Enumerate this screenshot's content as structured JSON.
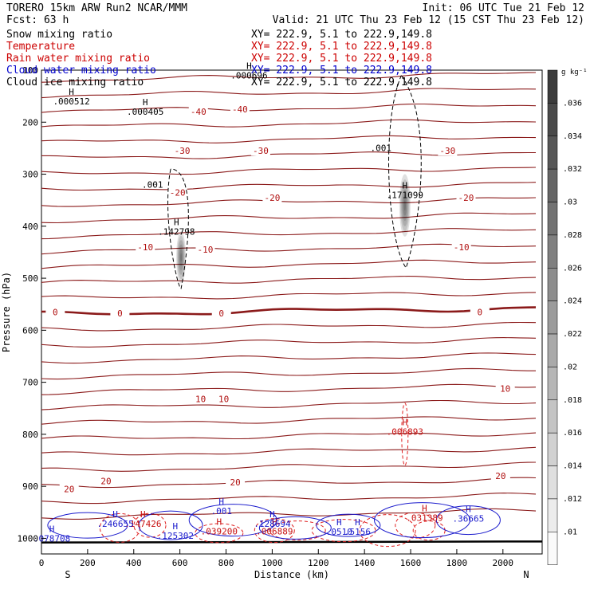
{
  "header": {
    "model": "TORERO  15km ARW    Run2     NCAR/MMM",
    "init": "Init: 06 UTC Tue 21 Feb 12",
    "fcst": "Fcst:   63 h",
    "valid": "Valid: 21 UTC Thu 23 Feb 12 (15 CST Thu 23 Feb 12)"
  },
  "legend": [
    {
      "label": "Snow mixing ratio",
      "xy": "XY= 222.9,   5.1 to 222.9,149.8",
      "color": "#000000"
    },
    {
      "label": "Temperature",
      "xy": "XY= 222.9,   5.1 to 222.9,149.8",
      "color": "#cc0000"
    },
    {
      "label": "Rain water mixing ratio",
      "xy": "XY= 222.9,   5.1 to 222.9,149.8",
      "color": "#cc0000"
    },
    {
      "label": "Cloud water mixing ratio",
      "xy": "XY= 222.9,   5.1 to 222.9,149.8",
      "color": "#0000cc"
    },
    {
      "label": "Cloud ice mixing ratio",
      "xy": "XY= 222.9,   5.1 to 222.9,149.8",
      "color": "#000000"
    }
  ],
  "colors": {
    "temperature": "#8b1a1a",
    "freezing": "#8b1a1a",
    "rain": "#e02020",
    "cloud_water": "#1a1acc",
    "snow": "#000000",
    "ground": "#000000"
  },
  "chart_data": {
    "type": "cross-section",
    "xlabel": "Distance (km)",
    "ylabel": "Pressure (hPa)",
    "xlim": [
      0,
      2170
    ],
    "ylim": [
      1030,
      100
    ],
    "x_ticks": [
      "0",
      "200",
      "400",
      "600",
      "800",
      "1000",
      "1200",
      "1400",
      "1600",
      "1800",
      "2000"
    ],
    "x_tick_values": [
      0,
      200,
      400,
      600,
      800,
      1000,
      1200,
      1400,
      1600,
      1800,
      2000
    ],
    "y_ticks": [
      "100",
      "200",
      "300",
      "400",
      "500",
      "600",
      "700",
      "800",
      "900",
      "1000"
    ],
    "y_tick_values": [
      100,
      200,
      300,
      400,
      500,
      600,
      700,
      800,
      900,
      1000
    ],
    "endpoints": {
      "left": "S",
      "right": "N"
    },
    "colorbar": {
      "unit": "g kg⁻¹",
      "ticks": [
        ".036",
        ".034",
        ".032",
        ".03",
        ".028",
        ".026",
        ".024",
        ".022",
        ".02",
        ".018",
        ".016",
        ".014",
        ".012",
        ".01"
      ]
    },
    "temperature_contours": [
      {
        "label": "-40",
        "positions": [
          [
            680,
            180
          ],
          [
            860,
            175
          ]
        ]
      },
      {
        "label": "-30",
        "positions": [
          [
            610,
            255
          ],
          [
            950,
            255
          ],
          [
            1760,
            255
          ]
        ]
      },
      {
        "label": "-20",
        "positions": [
          [
            590,
            335
          ],
          [
            1000,
            345
          ],
          [
            1840,
            345
          ]
        ]
      },
      {
        "label": "-10",
        "positions": [
          [
            450,
            440
          ],
          [
            710,
            445
          ],
          [
            1820,
            440
          ]
        ]
      },
      {
        "label": "0",
        "positions": [
          [
            60,
            565
          ],
          [
            340,
            567
          ],
          [
            780,
            567
          ],
          [
            1900,
            565
          ]
        ]
      },
      {
        "label": "10",
        "positions": [
          [
            690,
            732
          ],
          [
            790,
            732
          ],
          [
            2010,
            712
          ]
        ]
      },
      {
        "label": "20",
        "positions": [
          [
            120,
            905
          ],
          [
            280,
            890
          ],
          [
            840,
            892
          ],
          [
            1990,
            880
          ]
        ]
      }
    ],
    "snow_maxima": [
      {
        "label": ".000512",
        "x": 130,
        "p": 160
      },
      {
        "label": ".000405",
        "x": 450,
        "p": 180
      },
      {
        "label": ".000696",
        "x": 900,
        "p": 110
      }
    ],
    "ice_maxima": [
      {
        "label": ".142798",
        "x": 585,
        "p": 410,
        "contour": ".001"
      },
      {
        "label": ".171099",
        "x": 1575,
        "p": 340,
        "contour": ".001"
      }
    ],
    "rain_maxima": [
      {
        "label": ".006893",
        "x": 1575,
        "p": 795
      },
      {
        "label": ".147426",
        "x": 440,
        "p": 972
      },
      {
        "label": ".039200",
        "x": 770,
        "p": 986
      },
      {
        "label": ".006889",
        "x": 1010,
        "p": 986
      },
      {
        "label": ".031389",
        "x": 1660,
        "p": 960
      }
    ],
    "cloud_water_maxima": [
      {
        "label": ".078708",
        "x": 45,
        "p": 1000
      },
      {
        "label": ".246655",
        "x": 320,
        "p": 972
      },
      {
        "label": ".125302",
        "x": 580,
        "p": 995
      },
      {
        "label": ".001",
        "x": 780,
        "p": 947
      },
      {
        "label": ".128694",
        "x": 1000,
        "p": 972
      },
      {
        "label": ".0510",
        "x": 1290,
        "p": 987
      },
      {
        "label": ".5156",
        "x": 1370,
        "p": 987
      },
      {
        "label": ".36665",
        "x": 1850,
        "p": 962
      }
    ]
  }
}
